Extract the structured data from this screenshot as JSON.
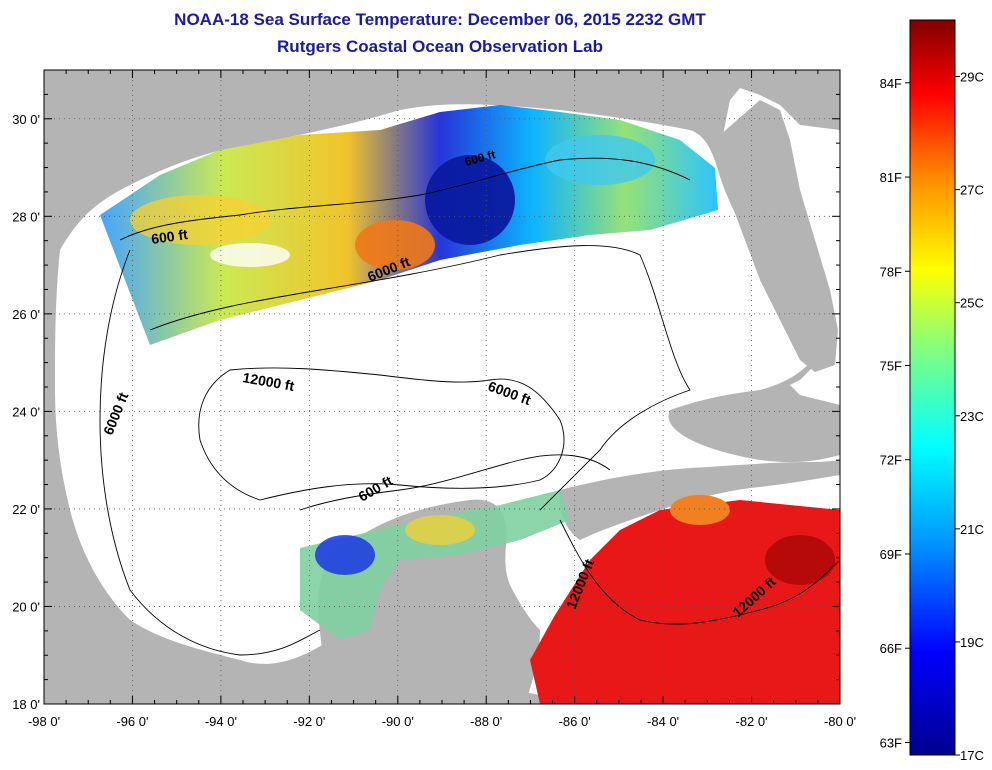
{
  "header": {
    "title": "NOAA-18 Sea Surface Temperature:  December 06, 2015 2232 GMT",
    "subtitle": "Rutgers Coastal Ocean Observation Lab"
  },
  "map": {
    "lon_range": [
      -98,
      -80
    ],
    "lat_range": [
      18,
      31
    ],
    "lon_ticks": [
      "-98 0'",
      "-96 0'",
      "-94 0'",
      "-92 0'",
      "-90 0'",
      "-88 0'",
      "-86 0'",
      "-84 0'",
      "-82 0'",
      "-80 0'"
    ],
    "lat_ticks": [
      "18 0'",
      "20 0'",
      "22 0'",
      "24 0'",
      "26 0'",
      "28 0'",
      "30 0'"
    ],
    "contour_labels": [
      "600 ft",
      "6000 ft",
      "12000 ft",
      "6000 ft",
      "6000 ft",
      "600 ft",
      "12000 ft",
      "12000 ft",
      "600 ft"
    ],
    "colors": {
      "land": "#b4b4b4",
      "no_data": "#ffffff",
      "contour": "#000000",
      "grid": "#555555"
    }
  },
  "colorbar": {
    "fahrenheit_labels": [
      "84F",
      "81F",
      "78F",
      "75F",
      "72F",
      "69F",
      "66F",
      "63F"
    ],
    "celsius_labels": [
      "29C",
      "27C",
      "25C",
      "23C",
      "21C",
      "19C",
      "17C"
    ],
    "range_c": [
      17,
      30
    ],
    "colormap": [
      "#00008f",
      "#0000ff",
      "#00a0ff",
      "#00ffff",
      "#80ff80",
      "#ffff00",
      "#ff9000",
      "#ff0000",
      "#800000"
    ]
  }
}
